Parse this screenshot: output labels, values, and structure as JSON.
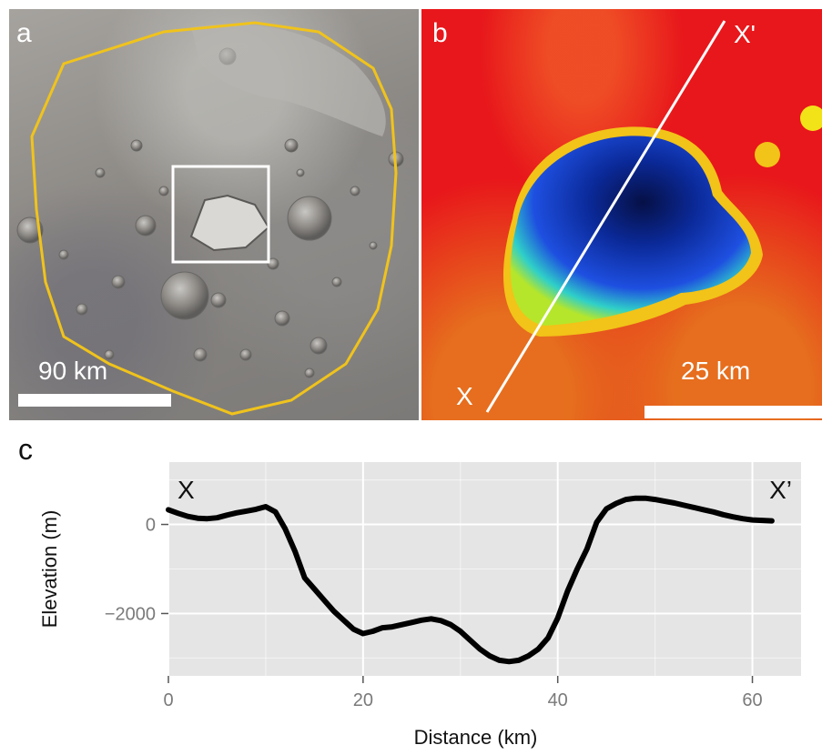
{
  "panels": {
    "a": {
      "letter": "a",
      "scale_label": "90 km"
    },
    "b": {
      "letter": "b",
      "scale_label": "25 km",
      "profile_start_label": "X",
      "profile_end_label": "X'"
    },
    "c": {
      "letter": "c"
    }
  },
  "chart_data": {
    "type": "line",
    "title": "",
    "xlabel": "Distance (km)",
    "ylabel": "Elevation (m)",
    "xlim": [
      0,
      65
    ],
    "ylim": [
      -3400,
      1400
    ],
    "x_ticks": [
      0,
      20,
      40,
      60
    ],
    "y_ticks": [
      0,
      -2000
    ],
    "x_tick_labels": [
      "0",
      "20",
      "40",
      "60"
    ],
    "y_tick_labels": [
      "0",
      "−2000"
    ],
    "grid": true,
    "annotations": [
      {
        "text": "X",
        "position": "top-left"
      },
      {
        "text": "X’",
        "position": "top-right"
      }
    ],
    "series": [
      {
        "x": [
          0,
          1,
          2,
          3,
          4,
          5,
          6,
          7,
          8,
          9,
          10,
          11,
          12,
          13,
          14,
          15,
          16,
          17,
          18,
          19,
          20,
          21,
          22,
          23,
          24,
          25,
          26,
          27,
          28,
          29,
          30,
          31,
          32,
          33,
          34,
          35,
          36,
          37,
          38,
          39,
          40,
          41,
          42,
          43,
          44,
          45,
          46,
          47,
          48,
          49,
          50,
          51,
          52,
          53,
          54,
          55,
          56,
          57,
          58,
          59,
          60,
          61,
          62
        ],
        "y": [
          330,
          250,
          180,
          140,
          130,
          150,
          210,
          260,
          300,
          340,
          400,
          280,
          -100,
          -600,
          -1200,
          -1450,
          -1700,
          -1950,
          -2150,
          -2350,
          -2450,
          -2400,
          -2320,
          -2300,
          -2250,
          -2200,
          -2150,
          -2120,
          -2160,
          -2250,
          -2400,
          -2600,
          -2800,
          -2950,
          -3050,
          -3080,
          -3050,
          -2950,
          -2800,
          -2550,
          -2100,
          -1500,
          -1000,
          -550,
          50,
          350,
          470,
          560,
          590,
          590,
          560,
          520,
          480,
          430,
          380,
          330,
          280,
          220,
          170,
          130,
          100,
          90,
          80
        ]
      }
    ]
  },
  "colors": {
    "plot_background": "#e5e5e5",
    "grid": "#ffffff",
    "line": "#000000",
    "rim_outline": "#f0c31c",
    "crater_deep": "#0a1a66",
    "crater_mid": "#1e4fe0",
    "crater_edge": "#2fd0c8",
    "surface_red": "#e8171b"
  }
}
